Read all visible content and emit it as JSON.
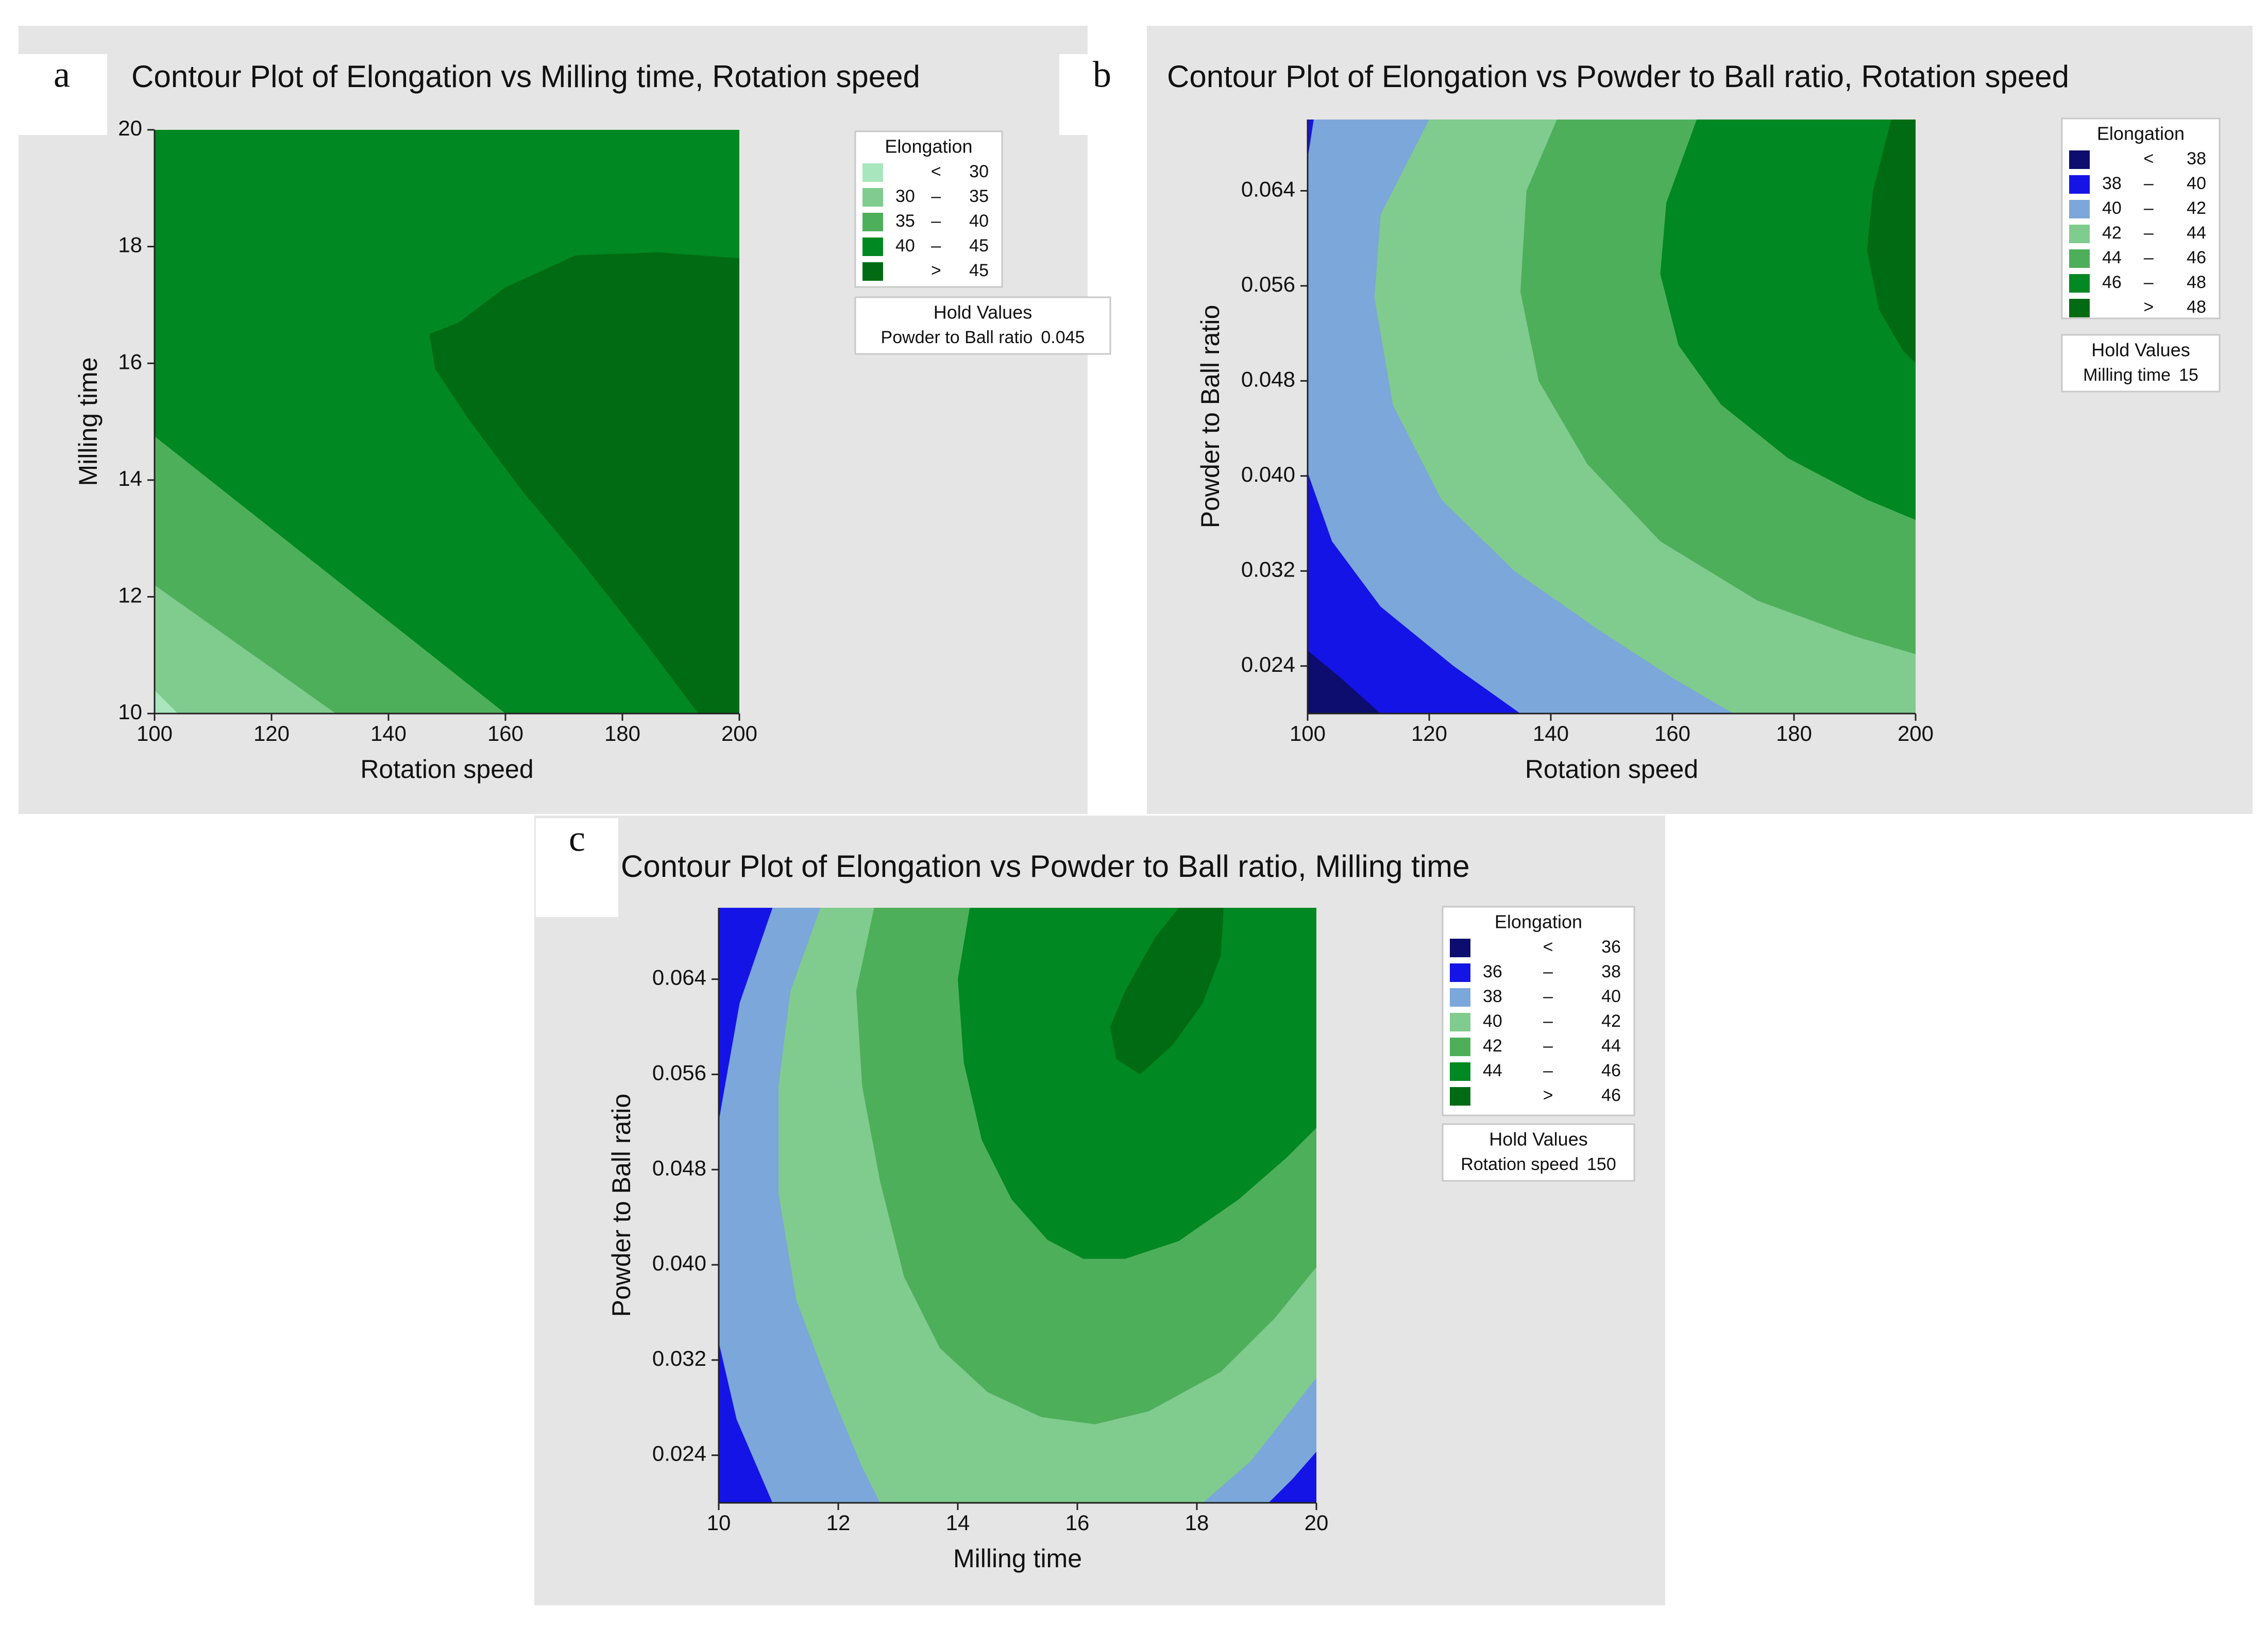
{
  "chart_data": [
    {
      "panel_letter": "a",
      "type": "contour",
      "title": "Contour Plot of Elongation vs Milling time, Rotation speed",
      "xlabel": "Rotation speed",
      "ylabel": "Milling time",
      "xlim": [
        100,
        200
      ],
      "ylim": [
        10,
        20
      ],
      "xticks": [
        "100",
        "120",
        "140",
        "160",
        "180",
        "200"
      ],
      "yticks": [
        "10",
        "12",
        "14",
        "16",
        "18",
        "20"
      ],
      "legend": {
        "title": "Elongation",
        "entries": [
          {
            "low": "",
            "op": "<",
            "high": "30",
            "color": "#A8E6BD"
          },
          {
            "low": "30",
            "op": "–",
            "high": "35",
            "color": "#80CB8E"
          },
          {
            "low": "35",
            "op": "–",
            "high": "40",
            "color": "#4EAF5B"
          },
          {
            "low": "40",
            "op": "–",
            "high": "45",
            "color": "#008822"
          },
          {
            "low": "",
            "op": ">",
            "high": "45",
            "color": "#006B12"
          }
        ]
      },
      "hold_values": {
        "title": "Hold Values",
        "lines": [
          {
            "name": "Powder to Ball ratio",
            "value": "0.045"
          }
        ]
      },
      "regions": [
        {
          "level": "40-45",
          "color": "#008822",
          "points": [
            [
              100,
              10
            ],
            [
              200,
              10
            ],
            [
              200,
              20
            ],
            [
              100,
              20
            ]
          ]
        },
        {
          "level": "35-40",
          "color": "#4EAF5B",
          "points": [
            [
              100,
              14.75
            ],
            [
              160,
              10
            ],
            [
              100,
              10
            ]
          ]
        },
        {
          "level": "30-35",
          "color": "#80CB8E",
          "points": [
            [
              100,
              12.2
            ],
            [
              131,
              10
            ],
            [
              100,
              10
            ]
          ]
        },
        {
          "level": "<30",
          "color": "#A8E6BD",
          "points": [
            [
              100,
              10.4
            ],
            [
              104,
              10
            ],
            [
              100,
              10
            ]
          ]
        },
        {
          "level": ">45",
          "color": "#006B12",
          "points": [
            [
              193,
              10
            ],
            [
              200,
              10
            ],
            [
              200,
              17.8
            ],
            [
              186,
              17.9
            ],
            [
              172,
              17.85
            ],
            [
              160,
              17.3
            ],
            [
              152,
              16.7
            ],
            [
              147,
              16.5
            ],
            [
              148,
              15.9
            ],
            [
              154,
              15.0
            ],
            [
              163,
              13.8
            ],
            [
              173,
              12.6
            ],
            [
              184,
              11.2
            ]
          ]
        }
      ]
    },
    {
      "panel_letter": "b",
      "type": "contour",
      "title": "Contour Plot of Elongation vs Powder to Ball ratio, Rotation speed",
      "xlabel": "Rotation speed",
      "ylabel": "Powder to Ball ratio",
      "xlim": [
        100,
        200
      ],
      "ylim": [
        0.02,
        0.07
      ],
      "xticks": [
        "100",
        "120",
        "140",
        "160",
        "180",
        "200"
      ],
      "yticks": [
        "0.024",
        "0.032",
        "0.040",
        "0.048",
        "0.056",
        "0.064"
      ],
      "legend": {
        "title": "Elongation",
        "entries": [
          {
            "low": "",
            "op": "<",
            "high": "38",
            "color": "#0C0D6E"
          },
          {
            "low": "38",
            "op": "–",
            "high": "40",
            "color": "#1414E6"
          },
          {
            "low": "40",
            "op": "–",
            "high": "42",
            "color": "#7BA7DA"
          },
          {
            "low": "42",
            "op": "–",
            "high": "44",
            "color": "#80CB8E"
          },
          {
            "low": "44",
            "op": "–",
            "high": "46",
            "color": "#4EAF5B"
          },
          {
            "low": "46",
            "op": "–",
            "high": "48",
            "color": "#008822"
          },
          {
            "low": "",
            "op": ">",
            "high": "48",
            "color": "#006B12"
          }
        ]
      },
      "hold_values": {
        "title": "Hold Values",
        "lines": [
          {
            "name": "Milling time",
            "value": "15"
          }
        ]
      },
      "regions": [
        {
          "level": "40-42",
          "color": "#7BA7DA",
          "points": [
            [
              100,
              0.02
            ],
            [
              200,
              0.02
            ],
            [
              200,
              0.07
            ],
            [
              100,
              0.07
            ]
          ]
        },
        {
          "level": "38-40",
          "color": "#1414E6",
          "points": [
            [
              100,
              0.0403
            ],
            [
              104,
              0.0345
            ],
            [
              112,
              0.029
            ],
            [
              124,
              0.024
            ],
            [
              135,
              0.02
            ],
            [
              100,
              0.02
            ]
          ]
        },
        {
          "level": "<38",
          "color": "#0C0D6E",
          "points": [
            [
              100,
              0.0253
            ],
            [
              105,
              0.0232
            ],
            [
              112,
              0.02
            ],
            [
              100,
              0.02
            ]
          ]
        },
        {
          "level": "38-40",
          "color": "#1414E6",
          "points": [
            [
              100,
              0.0667
            ],
            [
              101,
              0.07
            ],
            [
              100,
              0.07
            ]
          ]
        },
        {
          "level": "42-44",
          "color": "#80CB8E",
          "points": [
            [
              120,
              0.07
            ],
            [
              112,
              0.062
            ],
            [
              111,
              0.055
            ],
            [
              114,
              0.046
            ],
            [
              122,
              0.038
            ],
            [
              134,
              0.032
            ],
            [
              148,
              0.027
            ],
            [
              160,
              0.023
            ],
            [
              170,
              0.02
            ],
            [
              200,
              0.02
            ],
            [
              200,
              0.07
            ]
          ]
        },
        {
          "level": "44-46",
          "color": "#4EAF5B",
          "points": [
            [
              141,
              0.07
            ],
            [
              136,
              0.064
            ],
            [
              135,
              0.0555
            ],
            [
              138,
              0.048
            ],
            [
              146,
              0.041
            ],
            [
              158,
              0.0345
            ],
            [
              174,
              0.0295
            ],
            [
              190,
              0.0265
            ],
            [
              200,
              0.025
            ],
            [
              200,
              0.07
            ]
          ]
        },
        {
          "level": "46-48",
          "color": "#008822",
          "points": [
            [
              164,
              0.07
            ],
            [
              159,
              0.063
            ],
            [
              158,
              0.057
            ],
            [
              161,
              0.051
            ],
            [
              168,
              0.046
            ],
            [
              179,
              0.0415
            ],
            [
              192,
              0.038
            ],
            [
              200,
              0.0363
            ],
            [
              200,
              0.07
            ]
          ]
        },
        {
          "level": ">48",
          "color": "#006B12",
          "points": [
            [
              196,
              0.07
            ],
            [
              193,
              0.064
            ],
            [
              192,
              0.059
            ],
            [
              194,
              0.054
            ],
            [
              198,
              0.0505
            ],
            [
              200,
              0.0495
            ],
            [
              200,
              0.07
            ]
          ]
        }
      ]
    },
    {
      "panel_letter": "c",
      "type": "contour",
      "title": "Contour Plot of Elongation vs Powder to Ball ratio, Milling time",
      "xlabel": "Milling time",
      "ylabel": "Powder to Ball ratio",
      "xlim": [
        10,
        20
      ],
      "ylim": [
        0.02,
        0.07
      ],
      "xticks": [
        "10",
        "12",
        "14",
        "16",
        "18",
        "20"
      ],
      "yticks": [
        "0.024",
        "0.032",
        "0.040",
        "0.048",
        "0.056",
        "0.064"
      ],
      "legend": {
        "title": "Elongation",
        "entries": [
          {
            "low": "",
            "op": "<",
            "high": "36",
            "color": "#0C0D6E"
          },
          {
            "low": "36",
            "op": "–",
            "high": "38",
            "color": "#1414E6"
          },
          {
            "low": "38",
            "op": "–",
            "high": "40",
            "color": "#7BA7DA"
          },
          {
            "low": "40",
            "op": "–",
            "high": "42",
            "color": "#80CB8E"
          },
          {
            "low": "42",
            "op": "–",
            "high": "44",
            "color": "#4EAF5B"
          },
          {
            "low": "44",
            "op": "–",
            "high": "46",
            "color": "#008822"
          },
          {
            "low": "",
            "op": ">",
            "high": "46",
            "color": "#006B12"
          }
        ]
      },
      "hold_values": {
        "title": "Hold Values",
        "lines": [
          {
            "name": "Rotation speed",
            "value": "150"
          }
        ]
      },
      "regions": [
        {
          "level": "38-40",
          "color": "#7BA7DA",
          "points": [
            [
              10,
              0.02
            ],
            [
              20,
              0.02
            ],
            [
              20,
              0.07
            ],
            [
              10,
              0.07
            ]
          ]
        },
        {
          "level": "36-38",
          "color": "#1414E6",
          "points": [
            [
              10,
              0.07
            ],
            [
              10.9,
              0.07
            ],
            [
              10.35,
              0.062
            ],
            [
              10.05,
              0.0535
            ],
            [
              10,
              0.052
            ]
          ]
        },
        {
          "level": "36-38",
          "color": "#1414E6",
          "points": [
            [
              10,
              0.0335
            ],
            [
              10.3,
              0.027
            ],
            [
              10.9,
              0.02
            ],
            [
              10,
              0.02
            ]
          ]
        },
        {
          "level": "36-38",
          "color": "#1414E6",
          "points": [
            [
              20,
              0.0243
            ],
            [
              19.6,
              0.022
            ],
            [
              19.2,
              0.02
            ],
            [
              20,
              0.02
            ]
          ]
        },
        {
          "level": "40-42",
          "color": "#80CB8E",
          "points": [
            [
              11.7,
              0.07
            ],
            [
              11.2,
              0.063
            ],
            [
              11.0,
              0.055
            ],
            [
              11.0,
              0.046
            ],
            [
              11.3,
              0.037
            ],
            [
              11.9,
              0.029
            ],
            [
              12.4,
              0.023
            ],
            [
              12.7,
              0.02
            ],
            [
              18.1,
              0.02
            ],
            [
              18.9,
              0.0235
            ],
            [
              20,
              0.0305
            ],
            [
              20,
              0.07
            ]
          ]
        },
        {
          "level": "42-44",
          "color": "#4EAF5B",
          "points": [
            [
              12.6,
              0.07
            ],
            [
              12.3,
              0.063
            ],
            [
              12.4,
              0.055
            ],
            [
              12.7,
              0.047
            ],
            [
              13.1,
              0.039
            ],
            [
              13.7,
              0.033
            ],
            [
              14.5,
              0.0293
            ],
            [
              15.4,
              0.0272
            ],
            [
              16.3,
              0.0266
            ],
            [
              17.2,
              0.0277
            ],
            [
              18.4,
              0.031
            ],
            [
              19.3,
              0.0355
            ],
            [
              20,
              0.0398
            ],
            [
              20,
              0.07
            ]
          ]
        },
        {
          "level": "44-46",
          "color": "#008822",
          "points": [
            [
              14.2,
              0.07
            ],
            [
              14.0,
              0.064
            ],
            [
              14.1,
              0.057
            ],
            [
              14.4,
              0.0505
            ],
            [
              14.9,
              0.0455
            ],
            [
              15.5,
              0.0421
            ],
            [
              16.1,
              0.0405
            ],
            [
              16.8,
              0.0405
            ],
            [
              17.7,
              0.042
            ],
            [
              18.7,
              0.0455
            ],
            [
              19.5,
              0.049
            ],
            [
              20,
              0.0515
            ],
            [
              20,
              0.07
            ]
          ]
        },
        {
          "level": ">46",
          "color": "#006B12",
          "points": [
            [
              17.7,
              0.07
            ],
            [
              17.3,
              0.0675
            ],
            [
              16.8,
              0.063
            ],
            [
              16.55,
              0.06
            ],
            [
              16.65,
              0.0573
            ],
            [
              17.05,
              0.056
            ],
            [
              17.6,
              0.0585
            ],
            [
              18.1,
              0.062
            ],
            [
              18.4,
              0.066
            ],
            [
              18.45,
              0.07
            ]
          ]
        }
      ]
    }
  ]
}
